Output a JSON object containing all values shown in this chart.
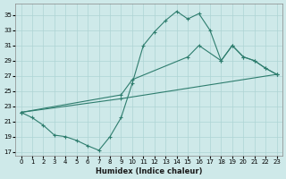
{
  "xlabel": "Humidex (Indice chaleur)",
  "bg_color": "#cee9e9",
  "grid_color": "#aed4d4",
  "line_color": "#2e7d6e",
  "xlim": [
    -0.5,
    23.5
  ],
  "ylim": [
    16.5,
    36.5
  ],
  "xticks": [
    0,
    1,
    2,
    3,
    4,
    5,
    6,
    7,
    8,
    9,
    10,
    11,
    12,
    13,
    14,
    15,
    16,
    17,
    18,
    19,
    20,
    21,
    22,
    23
  ],
  "yticks": [
    17,
    19,
    21,
    23,
    25,
    27,
    29,
    31,
    33,
    35
  ],
  "line1_x": [
    0,
    1,
    2,
    3,
    4,
    5,
    6,
    7,
    8,
    9,
    10,
    11,
    12,
    13,
    14,
    15,
    16,
    17,
    18,
    19,
    20,
    21,
    22,
    23
  ],
  "line1_y": [
    22.2,
    21.5,
    20.5,
    19.2,
    19.0,
    18.5,
    17.8,
    17.2,
    19.0,
    21.5,
    26.0,
    31.0,
    32.8,
    34.3,
    35.5,
    34.5,
    35.2,
    33.0,
    29.0,
    31.0,
    29.5,
    29.0,
    28.0,
    27.2
  ],
  "line2_x": [
    0,
    9,
    10,
    15,
    16,
    18,
    19,
    20,
    21,
    22,
    23
  ],
  "line2_y": [
    22.2,
    24.5,
    26.5,
    29.5,
    31.0,
    29.0,
    31.0,
    29.5,
    29.0,
    28.0,
    27.2
  ],
  "line3_x": [
    0,
    9,
    23
  ],
  "line3_y": [
    22.2,
    24.0,
    27.2
  ]
}
